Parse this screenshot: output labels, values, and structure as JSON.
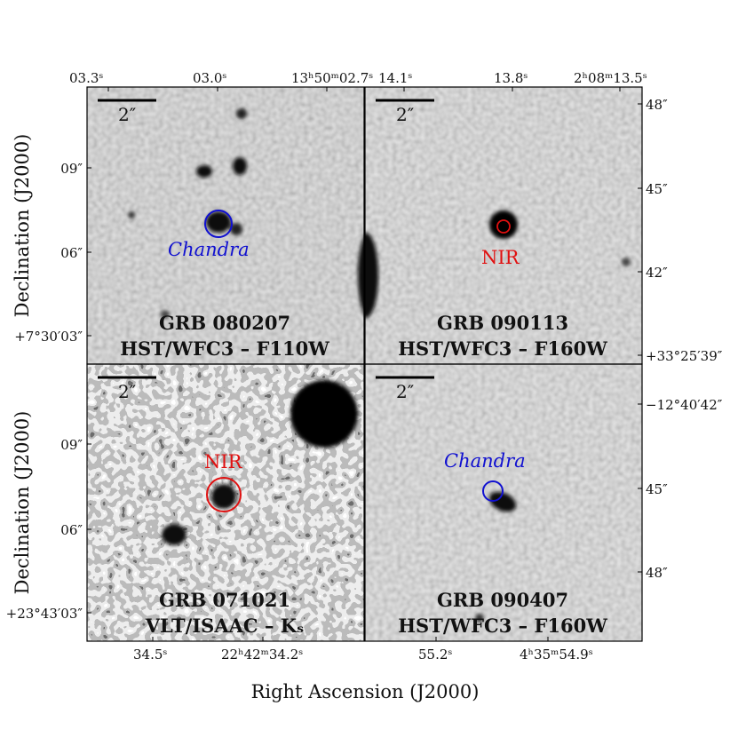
{
  "figure": {
    "xlabel": "Right Ascension (J2000)",
    "ylabel": "Declination (J2000)",
    "scalebar_label": "2″",
    "colors": {
      "blue_marker": "#1010d0",
      "red_marker": "#e01010",
      "frame": "#000000"
    }
  },
  "panels": [
    {
      "grb": "GRB 080207",
      "instrument": "HST/WFC3 – F110W",
      "marker_label": "Chandra",
      "marker_color": "#1010d0",
      "ra_ticks": [
        "03.3ˢ",
        "03.0ˢ",
        "13ʰ50ᵐ02.7ˢ"
      ],
      "dec_ticks": [
        "09″",
        "06″",
        "+7°30′03″"
      ]
    },
    {
      "grb": "GRB 090113",
      "instrument": "HST/WFC3 – F160W",
      "marker_label": "NIR",
      "marker_color": "#e01010",
      "ra_ticks": [
        "14.1ˢ",
        "13.8ˢ",
        "2ʰ08ᵐ13.5ˢ"
      ],
      "dec_ticks": [
        "48″",
        "45″",
        "42″",
        "+33°25′39″"
      ]
    },
    {
      "grb": "GRB 071021",
      "instrument": "VLT/ISAAC – Kₛ",
      "marker_label": "NIR",
      "marker_color": "#e01010",
      "ra_ticks": [
        "34.5ˢ",
        "22ʰ42ᵐ34.2ˢ"
      ],
      "dec_ticks": [
        "09″",
        "06″",
        "+23°43′03″"
      ]
    },
    {
      "grb": "GRB 090407",
      "instrument": "HST/WFC3 – F160W",
      "marker_label": "Chandra",
      "marker_color": "#1010d0",
      "ra_ticks": [
        "55.2ˢ",
        "4ʰ35ᵐ54.9ˢ"
      ],
      "dec_ticks": [
        "−12°40′42″",
        "45″",
        "48″"
      ]
    }
  ]
}
